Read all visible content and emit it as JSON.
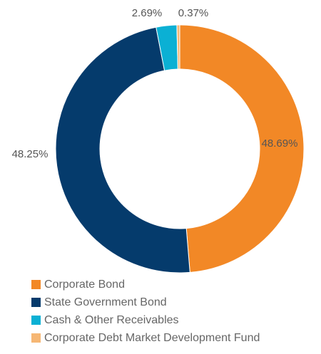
{
  "chart_data": {
    "type": "pie",
    "donut": true,
    "categories": [
      "Corporate Bond",
      "State Government Bond",
      "Cash & Other Receivables",
      "Corporate Debt Market Development Fund"
    ],
    "values": [
      48.69,
      48.25,
      2.69,
      0.37
    ],
    "value_labels": [
      "48.69%",
      "48.25%",
      "2.69%",
      "0.37%"
    ],
    "colors": [
      "#f28826",
      "#053b6c",
      "#0bb0d4",
      "#f6b774"
    ],
    "unit": "%",
    "legend_position": "bottom-left"
  }
}
